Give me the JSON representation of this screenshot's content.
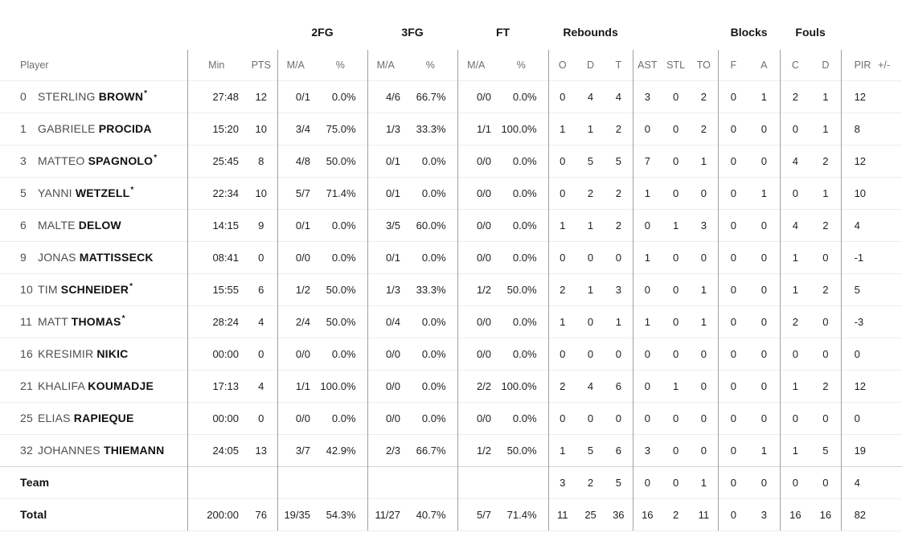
{
  "table": {
    "starter_mark": "*",
    "groups": {
      "fg2": "2FG",
      "fg3": "3FG",
      "ft": "FT",
      "rebounds": "Rebounds",
      "blocks": "Blocks",
      "fouls": "Fouls"
    },
    "columns": [
      "Player",
      "Min",
      "PTS",
      "M/A",
      "%",
      "M/A",
      "%",
      "M/A",
      "%",
      "O",
      "D",
      "T",
      "AST",
      "STL",
      "TO",
      "F",
      "A",
      "C",
      "D",
      "PIR",
      "+/-"
    ],
    "rows": [
      {
        "number": "0",
        "first": "STERLING",
        "last": "BROWN",
        "starter": true,
        "stats": [
          "27:48",
          "12",
          "0/1",
          "0.0%",
          "4/6",
          "66.7%",
          "0/0",
          "0.0%",
          "0",
          "4",
          "4",
          "3",
          "0",
          "2",
          "0",
          "1",
          "2",
          "1",
          "12"
        ]
      },
      {
        "number": "1",
        "first": "GABRIELE",
        "last": "PROCIDA",
        "starter": false,
        "stats": [
          "15:20",
          "10",
          "3/4",
          "75.0%",
          "1/3",
          "33.3%",
          "1/1",
          "100.0%",
          "1",
          "1",
          "2",
          "0",
          "0",
          "2",
          "0",
          "0",
          "0",
          "1",
          "8"
        ]
      },
      {
        "number": "3",
        "first": "MATTEO",
        "last": "SPAGNOLO",
        "starter": true,
        "stats": [
          "25:45",
          "8",
          "4/8",
          "50.0%",
          "0/1",
          "0.0%",
          "0/0",
          "0.0%",
          "0",
          "5",
          "5",
          "7",
          "0",
          "1",
          "0",
          "0",
          "4",
          "2",
          "12"
        ]
      },
      {
        "number": "5",
        "first": "YANNI",
        "last": "WETZELL",
        "starter": true,
        "stats": [
          "22:34",
          "10",
          "5/7",
          "71.4%",
          "0/1",
          "0.0%",
          "0/0",
          "0.0%",
          "0",
          "2",
          "2",
          "1",
          "0",
          "0",
          "0",
          "1",
          "0",
          "1",
          "10"
        ]
      },
      {
        "number": "6",
        "first": "MALTE",
        "last": "DELOW",
        "starter": false,
        "stats": [
          "14:15",
          "9",
          "0/1",
          "0.0%",
          "3/5",
          "60.0%",
          "0/0",
          "0.0%",
          "1",
          "1",
          "2",
          "0",
          "1",
          "3",
          "0",
          "0",
          "4",
          "2",
          "4"
        ]
      },
      {
        "number": "9",
        "first": "JONAS",
        "last": "MATTISSECK",
        "starter": false,
        "stats": [
          "08:41",
          "0",
          "0/0",
          "0.0%",
          "0/1",
          "0.0%",
          "0/0",
          "0.0%",
          "0",
          "0",
          "0",
          "1",
          "0",
          "0",
          "0",
          "0",
          "1",
          "0",
          "-1"
        ]
      },
      {
        "number": "10",
        "first": "TIM",
        "last": "SCHNEIDER",
        "starter": true,
        "stats": [
          "15:55",
          "6",
          "1/2",
          "50.0%",
          "1/3",
          "33.3%",
          "1/2",
          "50.0%",
          "2",
          "1",
          "3",
          "0",
          "0",
          "1",
          "0",
          "0",
          "1",
          "2",
          "5"
        ]
      },
      {
        "number": "11",
        "first": "MATT",
        "last": "THOMAS",
        "starter": true,
        "stats": [
          "28:24",
          "4",
          "2/4",
          "50.0%",
          "0/4",
          "0.0%",
          "0/0",
          "0.0%",
          "1",
          "0",
          "1",
          "1",
          "0",
          "1",
          "0",
          "0",
          "2",
          "0",
          "-3"
        ]
      },
      {
        "number": "16",
        "first": "KRESIMIR",
        "last": "NIKIC",
        "starter": false,
        "stats": [
          "00:00",
          "0",
          "0/0",
          "0.0%",
          "0/0",
          "0.0%",
          "0/0",
          "0.0%",
          "0",
          "0",
          "0",
          "0",
          "0",
          "0",
          "0",
          "0",
          "0",
          "0",
          "0"
        ]
      },
      {
        "number": "21",
        "first": "KHALIFA",
        "last": "KOUMADJE",
        "starter": false,
        "stats": [
          "17:13",
          "4",
          "1/1",
          "100.0%",
          "0/0",
          "0.0%",
          "2/2",
          "100.0%",
          "2",
          "4",
          "6",
          "0",
          "1",
          "0",
          "0",
          "0",
          "1",
          "2",
          "12"
        ]
      },
      {
        "number": "25",
        "first": "ELIAS",
        "last": "RAPIEQUE",
        "starter": false,
        "stats": [
          "00:00",
          "0",
          "0/0",
          "0.0%",
          "0/0",
          "0.0%",
          "0/0",
          "0.0%",
          "0",
          "0",
          "0",
          "0",
          "0",
          "0",
          "0",
          "0",
          "0",
          "0",
          "0"
        ]
      },
      {
        "number": "32",
        "first": "JOHANNES",
        "last": "THIEMANN",
        "starter": false,
        "stats": [
          "24:05",
          "13",
          "3/7",
          "42.9%",
          "2/3",
          "66.7%",
          "1/2",
          "50.0%",
          "1",
          "5",
          "6",
          "3",
          "0",
          "0",
          "0",
          "1",
          "1",
          "5",
          "19"
        ]
      }
    ],
    "team_row": {
      "label": "Team",
      "stats": [
        "",
        "",
        "",
        "",
        "",
        "",
        "",
        "",
        "3",
        "2",
        "5",
        "0",
        "0",
        "1",
        "0",
        "0",
        "0",
        "0",
        "4"
      ]
    },
    "total_row": {
      "label": "Total",
      "stats": [
        "200:00",
        "76",
        "19/35",
        "54.3%",
        "11/27",
        "40.7%",
        "5/7",
        "71.4%",
        "11",
        "25",
        "36",
        "16",
        "2",
        "11",
        "0",
        "3",
        "16",
        "16",
        "82"
      ]
    }
  },
  "colors": {
    "background": "#ffffff",
    "group_header_text": "#161616",
    "subheader_text": "#6e6e6e",
    "player_secondary": "#4b4f52",
    "player_last_name": "#111111",
    "stat_text": "#1e1e1e",
    "group_divider": "#a0a0a0",
    "row_line": "#ededed",
    "team_separator_line": "#d2d2d2"
  }
}
